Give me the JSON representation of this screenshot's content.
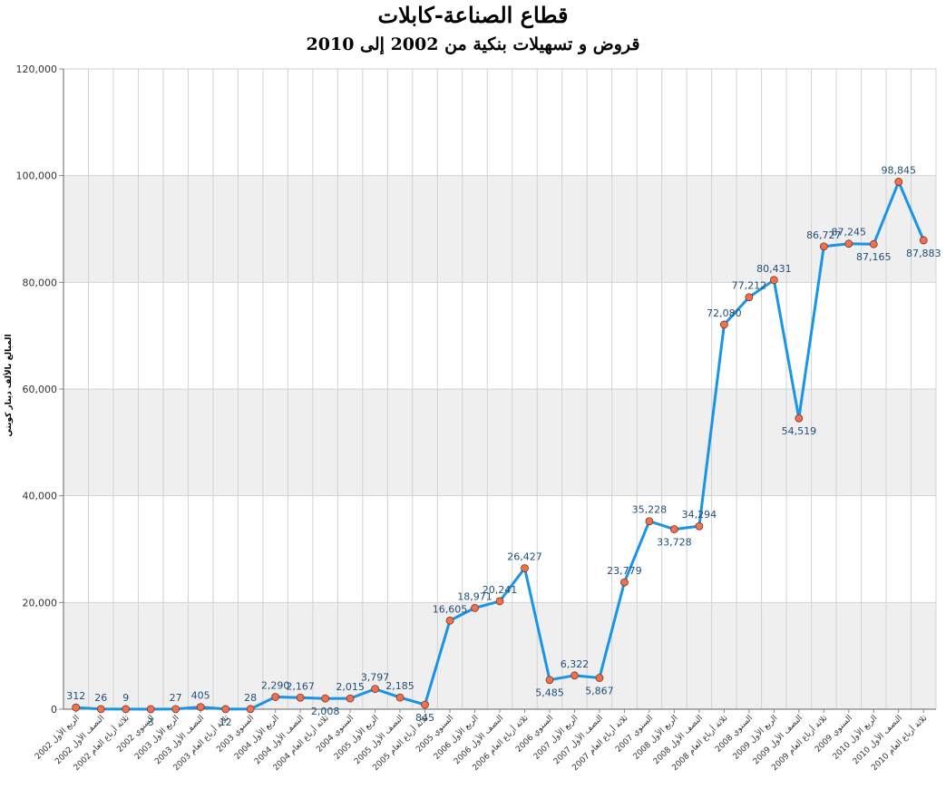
{
  "chart_data": {
    "type": "line",
    "title": "قطاع الصناعة-كابلات",
    "subtitle": "قروض و تسهيلات بنكية من 2002 إلى 2010",
    "ylabel": "المبالغ بالألف دينار كويتي",
    "xlabel": "",
    "ylim": [
      0,
      120000
    ],
    "yticks": [
      "0",
      "20,000",
      "40,000",
      "60,000",
      "80,000",
      "100,000",
      "120,000"
    ],
    "grid": true,
    "legend": "none",
    "colors": {
      "line": "#1a94e6",
      "marker": "#f07050",
      "label": "#1f4e79",
      "band": "#efefef"
    },
    "categories": [
      "الربع الأول 2002",
      "النصف الأول 2002",
      "ثلاثة أرباع العام 2002",
      "السنوي 2002",
      "الربع الأول 2003",
      "النصف الأول 2003",
      "ثلاثة أرباع العام 2003",
      "السنوي 2003",
      "الربع الأول 2004",
      "النصف الأول 2004",
      "ثلاثة أرباع العام 2004",
      "السنوي 2004",
      "الربع الأول 2005",
      "النصف الأول 2005",
      "ثلاثة أرباع العام 2005",
      "السنوي 2005",
      "الربع الأول 2006",
      "النصف الأول 2006",
      "ثلاثة أرباع العام 2006",
      "السنوي 2006",
      "الربع الأول 2007",
      "النصف الأول 2007",
      "ثلاثة أرباع العام 2007",
      "السنوي 2007",
      "الربع الأول 2008",
      "النصف الأول 2008",
      "ثلاثة أرباع العام 2008",
      "السنوي 2008",
      "الربع الأول 2009",
      "النصف الأول 2009",
      "ثلاثة أرباع العام 2009",
      "السنوي 2009",
      "الربع الأول 2010",
      "النصف الأول 2010",
      "ثلاثة أرباع العام 2010"
    ],
    "values": [
      312,
      26,
      9,
      3,
      27,
      405,
      12,
      28,
      2290,
      2167,
      2008,
      2015,
      3797,
      2185,
      845,
      16605,
      18971,
      20241,
      26427,
      5485,
      6322,
      5867,
      23779,
      35228,
      33728,
      34294,
      72080,
      77212,
      80431,
      54519,
      86727,
      87245,
      87165,
      98845,
      87883
    ],
    "data_labels": [
      "312",
      "26",
      "9",
      "3",
      "27",
      "405",
      "12",
      "28",
      "2,290",
      "2,167",
      "2,008",
      "2,015",
      "3,797",
      "2,185",
      "845",
      "16,605",
      "18,971",
      "20,241",
      "26,427",
      "5,485",
      "6,322",
      "5,867",
      "23,779",
      "35,228",
      "33,728",
      "34,294",
      "72,080",
      "77,212",
      "80,431",
      "54,519",
      "86,727",
      "87,245",
      "87,165",
      "98,845",
      "87,883"
    ]
  }
}
